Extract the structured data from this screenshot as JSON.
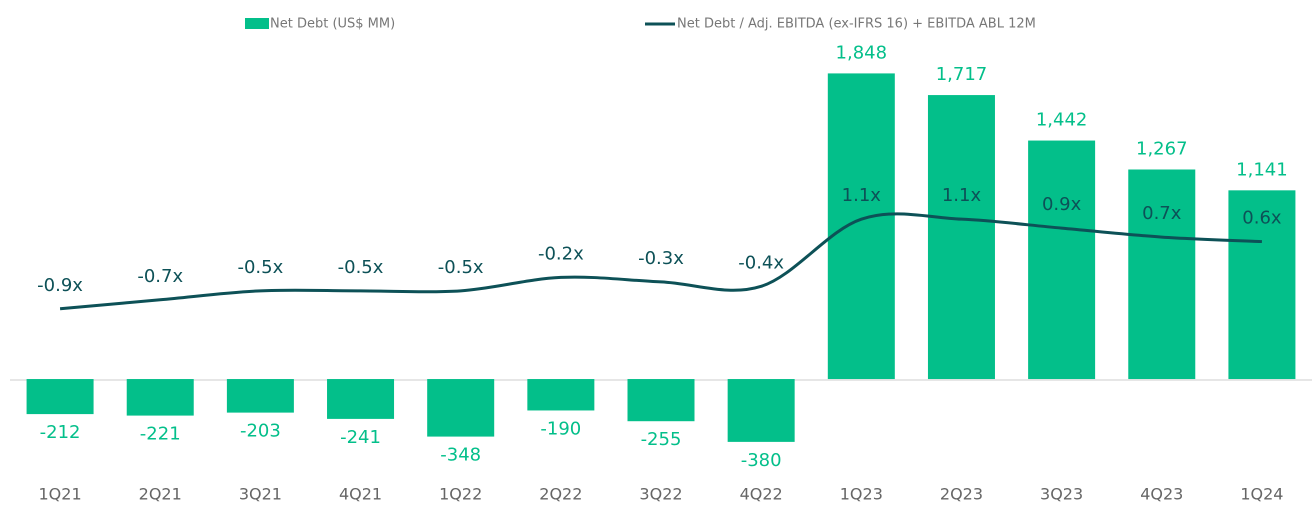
{
  "chart_data": {
    "type": "bar",
    "categories": [
      "1Q21",
      "2Q21",
      "3Q21",
      "4Q21",
      "1Q22",
      "2Q22",
      "3Q22",
      "4Q22",
      "1Q23",
      "2Q23",
      "3Q23",
      "4Q23",
      "1Q24"
    ],
    "series": [
      {
        "name": "Net Debt (US$ MM)",
        "type": "bar",
        "color": "#03bf8a",
        "values": [
          -212,
          -221,
          -203,
          -241,
          -348,
          -190,
          -255,
          -380,
          1848,
          1717,
          1442,
          1267,
          1141
        ],
        "value_labels": [
          "-212",
          "-221",
          "-203",
          "-241",
          "-348",
          "-190",
          "-255",
          "-380",
          "1,848",
          "1,717",
          "1,442",
          "1,267",
          "1,141"
        ]
      },
      {
        "name": "Net Debt / Adj. EBITDA (ex-IFRS 16) + EBITDA ABL 12M",
        "type": "line",
        "axis": "y2",
        "color": "#0d5157",
        "values": [
          -0.9,
          -0.7,
          -0.5,
          -0.5,
          -0.5,
          -0.2,
          -0.3,
          -0.4,
          1.1,
          1.1,
          0.9,
          0.7,
          0.6
        ],
        "value_labels": [
          "-0.9x",
          "-0.7x",
          "-0.5x",
          "-0.5x",
          "-0.5x",
          "-0.2x",
          "-0.3x",
          "-0.4x",
          "1.1x",
          "1.1x",
          "0.9x",
          "0.7x",
          "0.6x"
        ]
      }
    ],
    "ylim": [
      -550,
      2050
    ],
    "y2lim": [
      -4.5,
      5.1
    ],
    "legend": "top"
  }
}
